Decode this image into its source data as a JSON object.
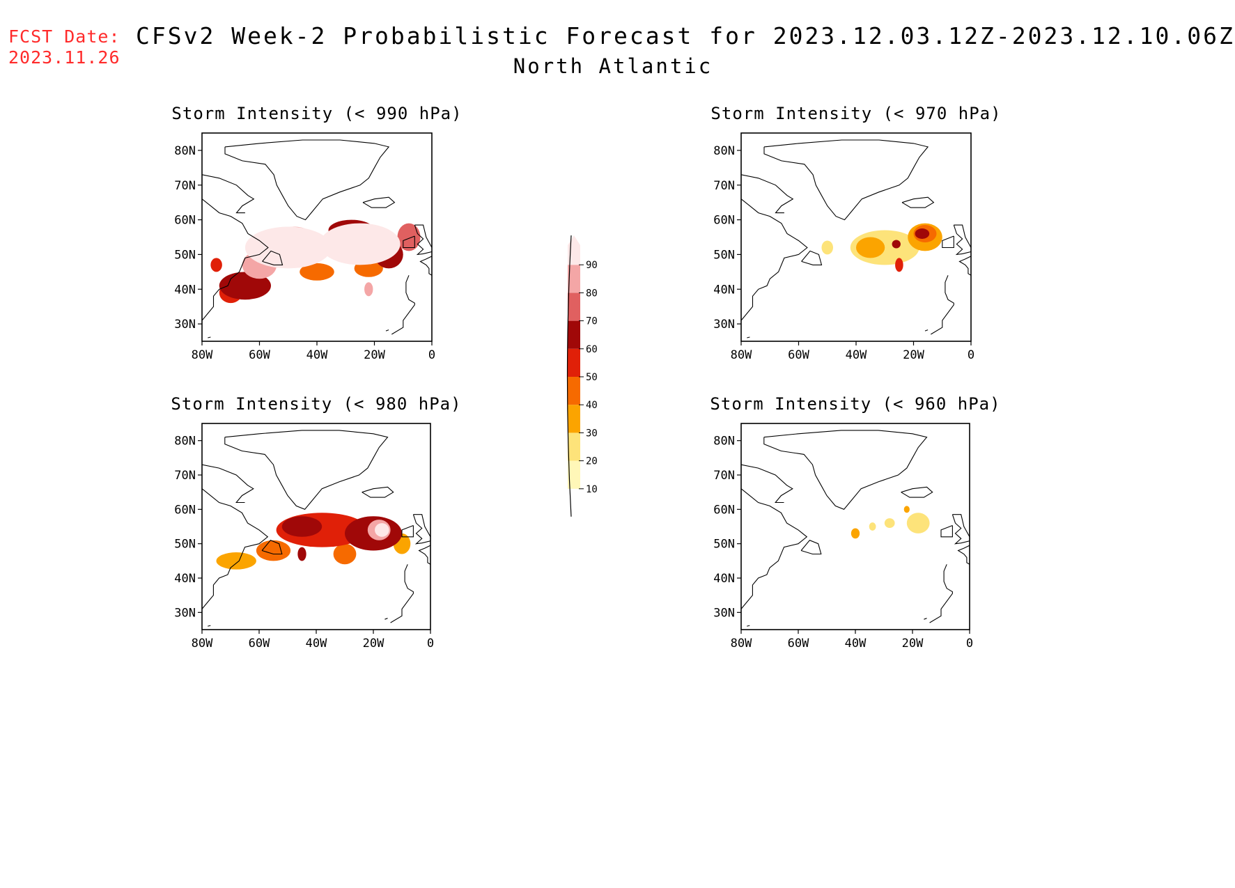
{
  "header": {
    "fcst_label": "FCST Date:",
    "fcst_date": "2023.11.26",
    "title": "CFSv2 Week-2 Probabilistic Forecast for 2023.12.03.12Z-2023.12.10.06Z",
    "region": "North Atlantic"
  },
  "colorbar": {
    "levels": [
      "10",
      "20",
      "30",
      "40",
      "50",
      "60",
      "70",
      "80",
      "90"
    ],
    "colors": [
      "#fff7b8",
      "#fde37a",
      "#fba400",
      "#f66a00",
      "#e02008",
      "#a00808",
      "#e06060",
      "#f4a6a6",
      "#fde8e8"
    ]
  },
  "axes": {
    "lon_ticks": [
      "80W",
      "60W",
      "40W",
      "20W",
      "0"
    ],
    "lat_ticks": [
      "80N",
      "70N",
      "60N",
      "50N",
      "40N",
      "30N"
    ]
  },
  "colors": {
    "fcst_text": "#ff2a2a",
    "coast": "#000000"
  },
  "panels": [
    {
      "title": "Storm Intensity (< 990 hPa)",
      "blobs": [
        {
          "lon": -50,
          "lat": 52,
          "rx": 15,
          "ry": 6,
          "level": 8
        },
        {
          "lon": -25,
          "lat": 53,
          "rx": 14,
          "ry": 6,
          "level": 8
        },
        {
          "lon": -65,
          "lat": 41,
          "rx": 9,
          "ry": 4,
          "level": 5
        },
        {
          "lon": -48,
          "lat": 55,
          "rx": 7,
          "ry": 3,
          "level": 7
        },
        {
          "lon": -28,
          "lat": 57,
          "rx": 8,
          "ry": 3,
          "level": 5
        },
        {
          "lon": -15,
          "lat": 50,
          "rx": 5,
          "ry": 4,
          "level": 5
        },
        {
          "lon": -60,
          "lat": 47,
          "rx": 6,
          "ry": 4,
          "level": 7
        },
        {
          "lon": -8,
          "lat": 55,
          "rx": 4,
          "ry": 4,
          "level": 6
        },
        {
          "lon": -40,
          "lat": 45,
          "rx": 6,
          "ry": 2.5,
          "level": 3
        },
        {
          "lon": -22,
          "lat": 46,
          "rx": 5,
          "ry": 2.5,
          "level": 3
        },
        {
          "lon": -70,
          "lat": 39,
          "rx": 4,
          "ry": 3,
          "level": 4
        },
        {
          "lon": -22,
          "lat": 40,
          "rx": 1.5,
          "ry": 2,
          "level": 7
        },
        {
          "lon": -75,
          "lat": 47,
          "rx": 2,
          "ry": 2,
          "level": 4
        }
      ]
    },
    {
      "title": "Storm Intensity (< 970 hPa)",
      "blobs": [
        {
          "lon": -30,
          "lat": 52,
          "rx": 12,
          "ry": 5,
          "level": 1
        },
        {
          "lon": -16,
          "lat": 55,
          "rx": 6,
          "ry": 4,
          "level": 2
        },
        {
          "lon": -16,
          "lat": 56,
          "rx": 4,
          "ry": 2.5,
          "level": 3
        },
        {
          "lon": -17,
          "lat": 56,
          "rx": 2.5,
          "ry": 1.5,
          "level": 5
        },
        {
          "lon": -35,
          "lat": 52,
          "rx": 5,
          "ry": 3,
          "level": 2
        },
        {
          "lon": -26,
          "lat": 53,
          "rx": 1.5,
          "ry": 1.2,
          "level": 5
        },
        {
          "lon": -25,
          "lat": 47,
          "rx": 1.4,
          "ry": 2,
          "level": 4
        },
        {
          "lon": -50,
          "lat": 52,
          "rx": 2,
          "ry": 2,
          "level": 1
        }
      ]
    },
    {
      "title": "Storm Intensity (< 980 hPa)",
      "blobs": [
        {
          "lon": -38,
          "lat": 54,
          "rx": 16,
          "ry": 5,
          "level": 4
        },
        {
          "lon": -20,
          "lat": 53,
          "rx": 10,
          "ry": 5,
          "level": 5
        },
        {
          "lon": -18,
          "lat": 54,
          "rx": 4,
          "ry": 3,
          "level": 7
        },
        {
          "lon": -17,
          "lat": 54,
          "rx": 2.5,
          "ry": 2,
          "level": 8
        },
        {
          "lon": -45,
          "lat": 55,
          "rx": 7,
          "ry": 3,
          "level": 5
        },
        {
          "lon": -68,
          "lat": 45,
          "rx": 7,
          "ry": 2.5,
          "level": 2
        },
        {
          "lon": -55,
          "lat": 48,
          "rx": 6,
          "ry": 3,
          "level": 3
        },
        {
          "lon": -30,
          "lat": 47,
          "rx": 4,
          "ry": 3,
          "level": 3
        },
        {
          "lon": -45,
          "lat": 47,
          "rx": 1.5,
          "ry": 2,
          "level": 5
        },
        {
          "lon": -10,
          "lat": 50,
          "rx": 3,
          "ry": 3,
          "level": 2
        }
      ]
    },
    {
      "title": "Storm Intensity (< 960 hPa)",
      "blobs": [
        {
          "lon": -18,
          "lat": 56,
          "rx": 4,
          "ry": 3,
          "level": 1
        },
        {
          "lon": -40,
          "lat": 53,
          "rx": 1.5,
          "ry": 1.5,
          "level": 2
        },
        {
          "lon": -34,
          "lat": 55,
          "rx": 1.2,
          "ry": 1.2,
          "level": 1
        },
        {
          "lon": -28,
          "lat": 56,
          "rx": 1.8,
          "ry": 1.4,
          "level": 1
        },
        {
          "lon": -22,
          "lat": 60,
          "rx": 1,
          "ry": 1,
          "level": 2
        }
      ]
    }
  ]
}
